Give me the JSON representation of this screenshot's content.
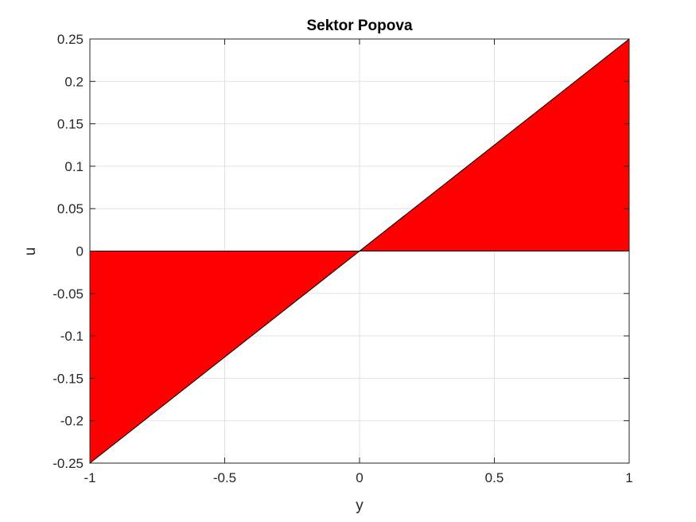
{
  "chart_data": {
    "type": "area",
    "title": "Sektor Popova",
    "xlabel": "y",
    "ylabel": "u",
    "xlim": [
      -1,
      1
    ],
    "ylim": [
      -0.25,
      0.25
    ],
    "grid": true,
    "x_ticks": [
      -1,
      -0.5,
      0,
      0.5,
      1
    ],
    "x_tick_labels": [
      "-1",
      "-0.5",
      "0",
      "0.5",
      "1"
    ],
    "y_ticks": [
      -0.25,
      -0.2,
      -0.15,
      -0.1,
      -0.05,
      0,
      0.05,
      0.1,
      0.15,
      0.2,
      0.25
    ],
    "y_tick_labels": [
      "-0.25",
      "-0.2",
      "-0.15",
      "-0.1",
      "-0.05",
      "0",
      "0.05",
      "0.1",
      "0.15",
      "0.2",
      "0.25"
    ],
    "series": [
      {
        "x": [
          -1,
          0,
          1
        ],
        "lower": [
          -0.25,
          0,
          0
        ],
        "upper": [
          0,
          0,
          0.25
        ],
        "color": "#ff0000",
        "edge_color": "#000000"
      }
    ]
  }
}
